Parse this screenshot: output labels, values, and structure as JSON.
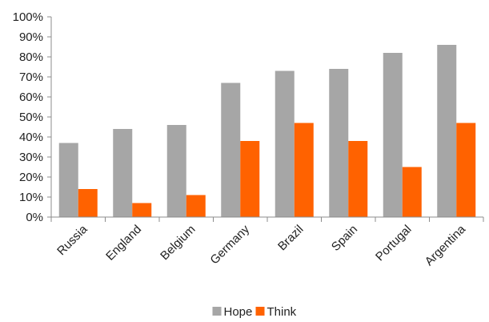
{
  "chart_data": {
    "type": "bar",
    "categories": [
      "Russia",
      "England",
      "Belgium",
      "Germany",
      "Brazil",
      "Spain",
      "Portugal",
      "Argentina"
    ],
    "series": [
      {
        "name": "Hope",
        "values": [
          37,
          44,
          46,
          67,
          73,
          74,
          82,
          86
        ],
        "color": "#a6a6a6"
      },
      {
        "name": "Think",
        "values": [
          14,
          7,
          11,
          38,
          47,
          38,
          25,
          47
        ],
        "color": "#ff6200"
      }
    ],
    "ylim": [
      0,
      100
    ],
    "ytick_step": 10,
    "y_tick_suffix": "%",
    "grid": false,
    "legend": "bottom-center"
  }
}
